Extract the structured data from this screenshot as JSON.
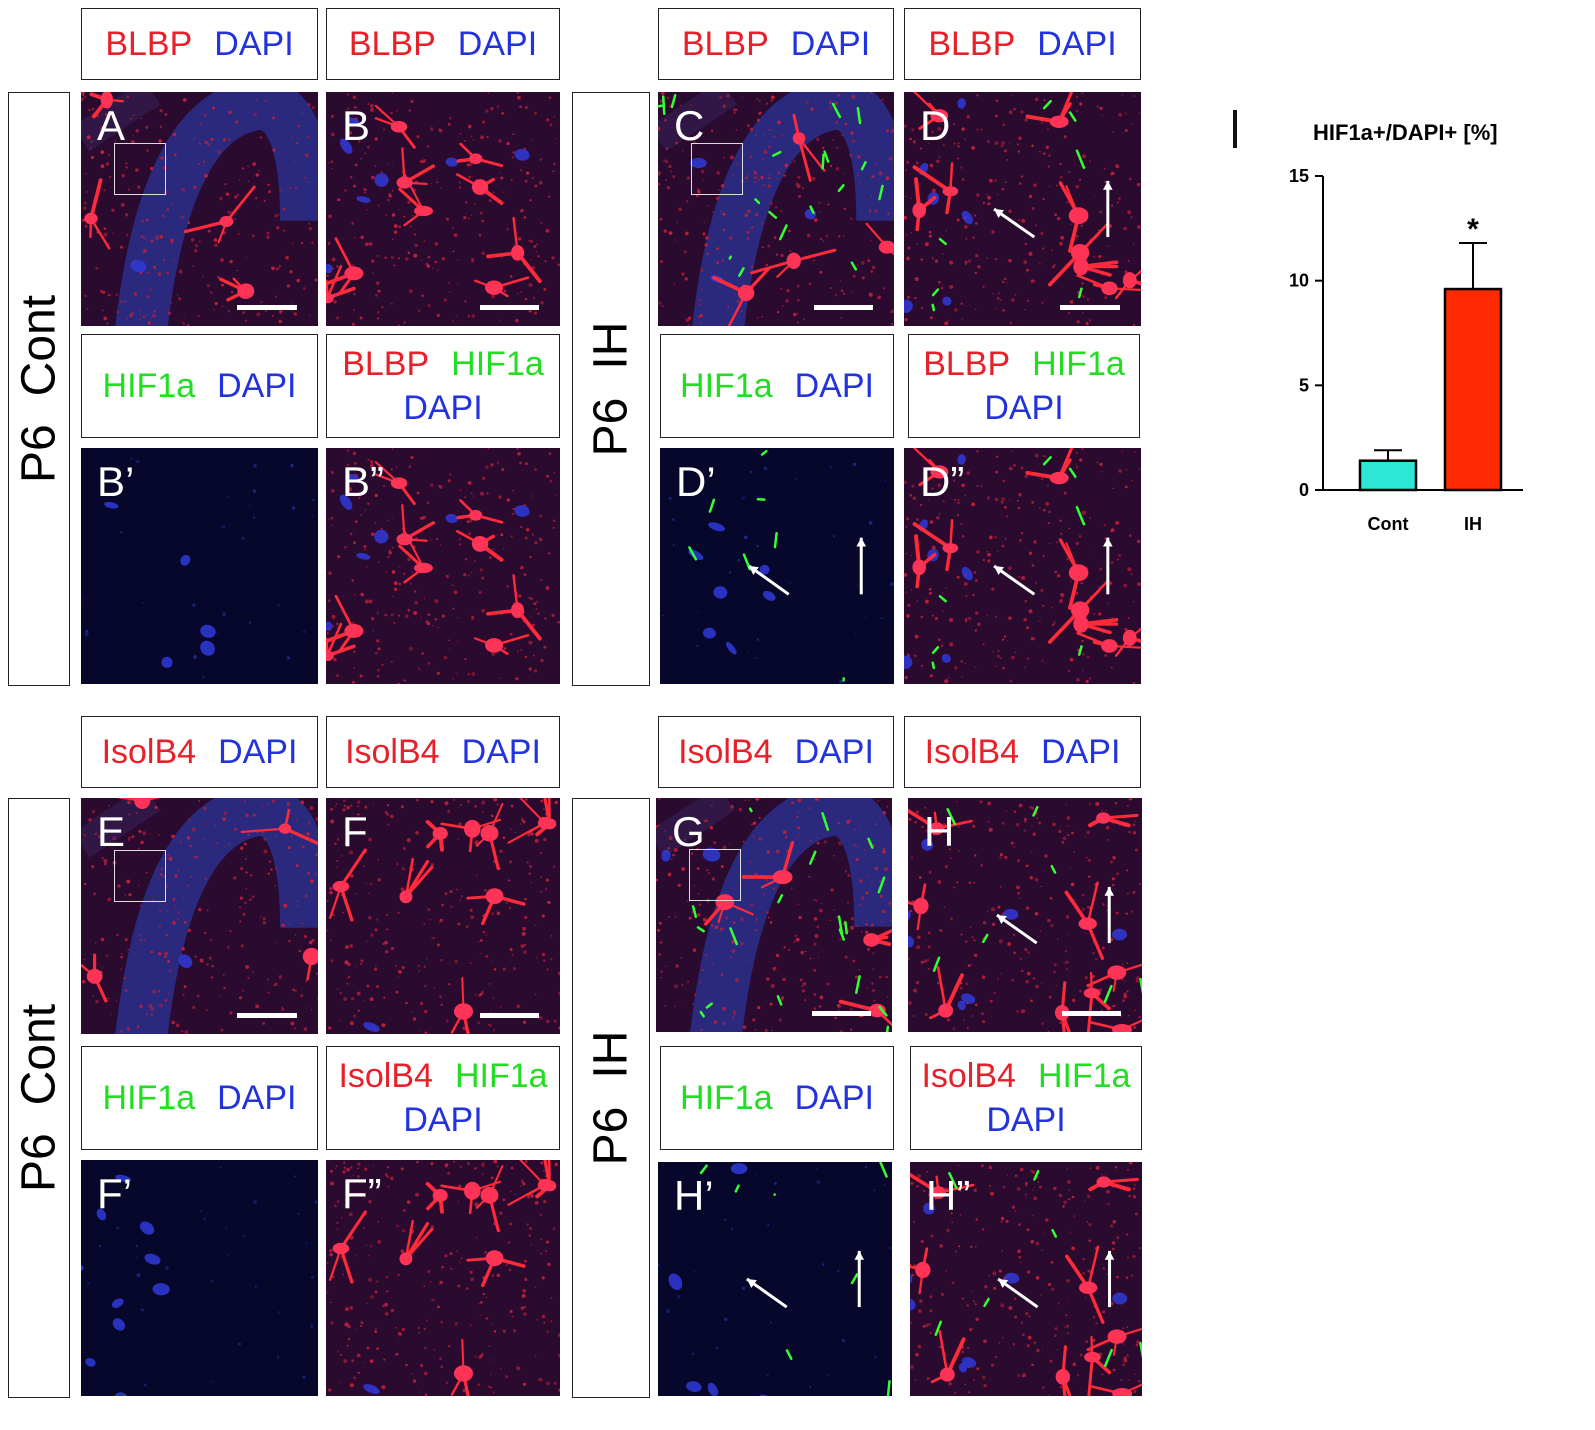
{
  "side_labels": [
    {
      "age": "P6",
      "group": "Cont"
    },
    {
      "age": "P6",
      "group": "IH"
    },
    {
      "age": "P6",
      "group": "Cont"
    },
    {
      "age": "P6",
      "group": "IH"
    }
  ],
  "stain_labels": {
    "blbp": "BLBP",
    "isolb4": "IsolB4",
    "dapi": "DAPI",
    "hif1a": "HIF1a"
  },
  "panels": {
    "A": "A",
    "B": "B",
    "Bp": "B’",
    "Bpp": "B”",
    "C": "C",
    "D": "D",
    "Dp": "D’",
    "Dpp": "D”",
    "E": "E",
    "F": "F",
    "Fp": "F’",
    "Fpp": "F”",
    "G": "G",
    "H": "H",
    "Hp": "H’",
    "Hpp": "H”"
  },
  "colors": {
    "red_stain": "#e8202a",
    "blue_stain": "#2233dd",
    "green_stain": "#22dd22",
    "cont_bar": "#2ee6d6",
    "ih_bar": "#ff2a00"
  },
  "chart_data": {
    "type": "bar",
    "title": "HIF1a+/DAPI+ [%]",
    "categories": [
      "Cont",
      "IH"
    ],
    "values": [
      1.4,
      9.6
    ],
    "errors": [
      0.5,
      2.2
    ],
    "ylim": [
      0,
      15
    ],
    "yticks": [
      0,
      5,
      10,
      15
    ],
    "annotations": [
      {
        "category": "IH",
        "text": "*"
      }
    ],
    "grid": false
  }
}
